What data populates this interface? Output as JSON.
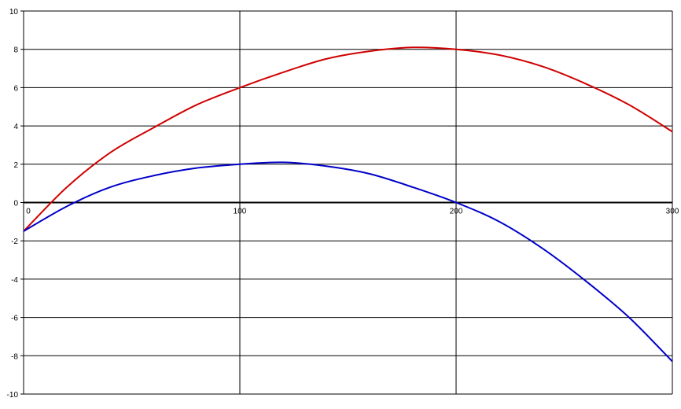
{
  "chart_data": {
    "type": "line",
    "title": "",
    "xlabel": "",
    "ylabel": "",
    "xlim": [
      0,
      300
    ],
    "ylim": [
      -10,
      10
    ],
    "grid": true,
    "legend": "none",
    "x_ticks": [
      0,
      100,
      200,
      300
    ],
    "y_ticks": [
      -10,
      -8,
      -6,
      -4,
      -2,
      0,
      2,
      4,
      6,
      8,
      10
    ],
    "series": [
      {
        "color": "#d00000",
        "x": [
          0,
          20,
          40,
          60,
          80,
          100,
          120,
          140,
          160,
          180,
          200,
          220,
          240,
          260,
          280,
          300
        ],
        "y": [
          -1.5,
          0.8,
          2.6,
          3.9,
          5.1,
          6.0,
          6.8,
          7.5,
          7.9,
          8.1,
          8.0,
          7.7,
          7.1,
          6.2,
          5.1,
          3.7
        ]
      },
      {
        "color": "#0000c8",
        "x": [
          0,
          20,
          40,
          60,
          80,
          100,
          120,
          140,
          160,
          180,
          200,
          220,
          240,
          260,
          280,
          300
        ],
        "y": [
          -1.5,
          -0.2,
          0.8,
          1.4,
          1.8,
          2.0,
          2.1,
          1.9,
          1.5,
          0.8,
          0.0,
          -1.0,
          -2.4,
          -4.1,
          -6.0,
          -8.3
        ]
      }
    ]
  }
}
